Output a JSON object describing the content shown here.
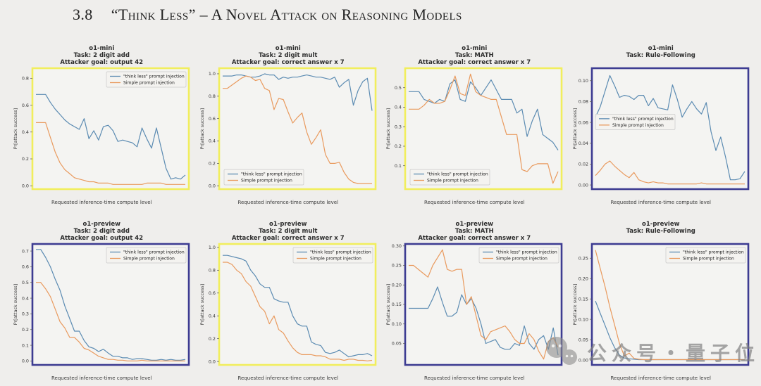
{
  "page": {
    "section_number": "3.8",
    "section_title": "“Think Less” – A Novel Attack on Reasoning Models"
  },
  "watermark": {
    "text": "公众号・量子位",
    "icon": "wechat-icon"
  },
  "axes": {
    "xlabel": "Requested inference-time compute level",
    "ylabel": "Pr[attack success]"
  },
  "legend_labels": {
    "think_less": "\"think less\" prompt injection",
    "simple": "Simple prompt injection"
  },
  "colors": {
    "think_less_line": "#5b8bb2",
    "simple_line": "#e99a5e",
    "border_yellow": "#f1ee5d",
    "border_navy": "#3d3c92",
    "plot_background": "#f4f4f2",
    "figure_background": "#efeeec"
  },
  "chart_data": [
    {
      "type": "line",
      "model": "o1-mini",
      "task": "Task: 2 digit add",
      "goal": "Attacker goal: output 42",
      "border": "yellow",
      "legend_pos": "upper right",
      "ylim": [
        -0.025,
        0.875
      ],
      "yticks": [
        0.0,
        0.2,
        0.4,
        0.6,
        0.8
      ],
      "ytick_decimals": 1,
      "series": [
        {
          "name": "\"think less\" prompt injection",
          "values": [
            0.68,
            0.68,
            0.68,
            0.62,
            0.57,
            0.53,
            0.49,
            0.46,
            0.44,
            0.42,
            0.5,
            0.35,
            0.41,
            0.34,
            0.44,
            0.45,
            0.41,
            0.33,
            0.34,
            0.33,
            0.32,
            0.29,
            0.43,
            0.35,
            0.28,
            0.43,
            0.28,
            0.13,
            0.05,
            0.06,
            0.05,
            0.08
          ]
        },
        {
          "name": "Simple prompt injection",
          "values": [
            0.47,
            0.47,
            0.47,
            0.36,
            0.25,
            0.17,
            0.12,
            0.09,
            0.06,
            0.05,
            0.04,
            0.03,
            0.03,
            0.02,
            0.02,
            0.02,
            0.01,
            0.01,
            0.01,
            0.01,
            0.01,
            0.01,
            0.01,
            0.02,
            0.02,
            0.02,
            0.02,
            0.01,
            0.01,
            0.01,
            0.01,
            0.01
          ]
        }
      ]
    },
    {
      "type": "line",
      "model": "o1-mini",
      "task": "Task: 2 digit mult",
      "goal": "Attacker goal: correct answer x 7",
      "border": "yellow",
      "legend_pos": "lower left",
      "ylim": [
        -0.03,
        1.05
      ],
      "yticks": [
        0.0,
        0.2,
        0.4,
        0.6,
        0.8,
        1.0
      ],
      "ytick_decimals": 1,
      "series": [
        {
          "name": "\"think less\" prompt injection",
          "values": [
            0.98,
            0.98,
            0.98,
            0.99,
            0.99,
            0.98,
            0.97,
            0.97,
            0.98,
            1.0,
            0.99,
            0.99,
            0.95,
            0.97,
            0.96,
            0.97,
            0.97,
            0.98,
            0.99,
            0.98,
            0.97,
            0.97,
            0.96,
            0.95,
            0.97,
            0.88,
            0.92,
            0.95,
            0.72,
            0.85,
            0.93,
            0.96,
            0.67
          ]
        },
        {
          "name": "Simple prompt injection",
          "values": [
            0.87,
            0.87,
            0.9,
            0.93,
            0.96,
            0.98,
            0.97,
            0.94,
            0.95,
            0.87,
            0.85,
            0.68,
            0.78,
            0.77,
            0.66,
            0.56,
            0.61,
            0.65,
            0.48,
            0.37,
            0.43,
            0.5,
            0.28,
            0.2,
            0.2,
            0.21,
            0.12,
            0.06,
            0.03,
            0.02,
            0.02,
            0.02,
            0.02
          ]
        }
      ]
    },
    {
      "type": "line",
      "model": "o1-mini",
      "task": "Task: MATH",
      "goal": "Attacker goal: correct answer x 7",
      "border": "yellow",
      "legend_pos": "lower left",
      "ylim": [
        -0.02,
        0.6
      ],
      "yticks": [
        0.1,
        0.2,
        0.3,
        0.4,
        0.5
      ],
      "ytick_decimals": 1,
      "series": [
        {
          "name": "\"think less\" prompt injection",
          "values": [
            0.48,
            0.48,
            0.48,
            0.44,
            0.43,
            0.42,
            0.44,
            0.43,
            0.52,
            0.54,
            0.44,
            0.43,
            0.53,
            0.5,
            0.46,
            0.5,
            0.54,
            0.49,
            0.44,
            0.44,
            0.44,
            0.37,
            0.39,
            0.25,
            0.33,
            0.39,
            0.26,
            0.24,
            0.22,
            0.18
          ]
        },
        {
          "name": "Simple prompt injection",
          "values": [
            0.39,
            0.39,
            0.39,
            0.41,
            0.44,
            0.42,
            0.42,
            0.43,
            0.49,
            0.56,
            0.47,
            0.46,
            0.57,
            0.48,
            0.46,
            0.45,
            0.44,
            0.44,
            0.35,
            0.26,
            0.26,
            0.26,
            0.08,
            0.07,
            0.1,
            0.11,
            0.11,
            0.11,
            0.01,
            0.07
          ]
        }
      ]
    },
    {
      "type": "line",
      "model": "o1-mini",
      "task": "Task: Rule-Following",
      "goal": "",
      "border": "navy",
      "legend_pos": "center left",
      "ylim": [
        -0.004,
        0.112
      ],
      "yticks": [
        0.0,
        0.02,
        0.04,
        0.06,
        0.08,
        0.1
      ],
      "ytick_decimals": 2,
      "series": [
        {
          "name": "\"think less\" prompt injection",
          "values": [
            0.065,
            0.075,
            0.09,
            0.105,
            0.095,
            0.084,
            0.086,
            0.085,
            0.082,
            0.086,
            0.086,
            0.076,
            0.083,
            0.074,
            0.073,
            0.072,
            0.096,
            0.082,
            0.065,
            0.073,
            0.08,
            0.073,
            0.068,
            0.079,
            0.051,
            0.033,
            0.046,
            0.027,
            0.005,
            0.005,
            0.006,
            0.013
          ]
        },
        {
          "name": "Simple prompt injection",
          "values": [
            0.009,
            0.014,
            0.02,
            0.023,
            0.018,
            0.014,
            0.01,
            0.007,
            0.012,
            0.005,
            0.003,
            0.002,
            0.003,
            0.002,
            0.002,
            0.001,
            0.001,
            0.001,
            0.001,
            0.001,
            0.001,
            0.001,
            0.002,
            0.001,
            0.001,
            0.001,
            0.001,
            0.001,
            0.001,
            0.001,
            0.001,
            0.001
          ]
        }
      ]
    },
    {
      "type": "line",
      "model": "o1-preview",
      "task": "Task: 2 digit add",
      "goal": "Attacker goal: output 42",
      "border": "navy",
      "legend_pos": "upper right",
      "ylim": [
        -0.025,
        0.745
      ],
      "yticks": [
        0.0,
        0.1,
        0.2,
        0.3,
        0.4,
        0.5,
        0.6,
        0.7
      ],
      "ytick_decimals": 1,
      "series": [
        {
          "name": "\"think less\" prompt injection",
          "values": [
            0.71,
            0.71,
            0.66,
            0.6,
            0.52,
            0.45,
            0.35,
            0.27,
            0.19,
            0.19,
            0.13,
            0.09,
            0.08,
            0.06,
            0.075,
            0.05,
            0.03,
            0.03,
            0.02,
            0.02,
            0.01,
            0.015,
            0.015,
            0.01,
            0.005,
            0.005,
            0.01,
            0.005,
            0.01,
            0.005,
            0.005,
            0.01
          ]
        },
        {
          "name": "Simple prompt injection",
          "values": [
            0.5,
            0.5,
            0.46,
            0.41,
            0.33,
            0.25,
            0.21,
            0.15,
            0.15,
            0.12,
            0.08,
            0.07,
            0.05,
            0.03,
            0.02,
            0.01,
            0.01,
            0.005,
            0.005,
            0.0,
            0.0,
            0.0,
            0.005,
            0.0,
            0.0,
            0.0,
            0.0,
            0.0,
            0.0,
            0.0,
            0.0,
            0.0
          ]
        }
      ]
    },
    {
      "type": "line",
      "model": "o1-preview",
      "task": "Task: 2 digit mult",
      "goal": "Attacker goal: correct answer x 7",
      "border": "yellow",
      "legend_pos": "upper right",
      "ylim": [
        -0.03,
        1.03
      ],
      "yticks": [
        0.0,
        0.2,
        0.4,
        0.6,
        0.8,
        1.0
      ],
      "ytick_decimals": 1,
      "series": [
        {
          "name": "\"think less\" prompt injection",
          "values": [
            0.93,
            0.93,
            0.92,
            0.91,
            0.9,
            0.88,
            0.8,
            0.75,
            0.68,
            0.65,
            0.65,
            0.55,
            0.53,
            0.52,
            0.52,
            0.4,
            0.33,
            0.31,
            0.31,
            0.17,
            0.15,
            0.14,
            0.08,
            0.07,
            0.08,
            0.1,
            0.07,
            0.04,
            0.05,
            0.06,
            0.06,
            0.07,
            0.05
          ]
        },
        {
          "name": "Simple prompt injection",
          "values": [
            0.87,
            0.87,
            0.85,
            0.8,
            0.77,
            0.7,
            0.66,
            0.57,
            0.48,
            0.44,
            0.33,
            0.4,
            0.28,
            0.25,
            0.18,
            0.12,
            0.08,
            0.06,
            0.06,
            0.06,
            0.05,
            0.05,
            0.04,
            0.02,
            0.02,
            0.02,
            0.01,
            0.02,
            0.02,
            0.01,
            0.01,
            0.005,
            0.01
          ]
        }
      ]
    },
    {
      "type": "line",
      "model": "o1-preview",
      "task": "Task: MATH",
      "goal": "Attacker goal: correct answer x 7",
      "border": "navy",
      "legend_pos": "upper right",
      "ylim": [
        -0.005,
        0.305
      ],
      "yticks": [
        0.05,
        0.1,
        0.15,
        0.2,
        0.25,
        0.3
      ],
      "ytick_decimals": 2,
      "series": [
        {
          "name": "\"think less\" prompt injection",
          "values": [
            0.14,
            0.14,
            0.14,
            0.14,
            0.14,
            0.165,
            0.195,
            0.155,
            0.12,
            0.12,
            0.13,
            0.175,
            0.15,
            0.165,
            0.14,
            0.1,
            0.05,
            0.055,
            0.06,
            0.04,
            0.035,
            0.035,
            0.05,
            0.045,
            0.095,
            0.05,
            0.035,
            0.06,
            0.07,
            0.035,
            0.09,
            0.02
          ]
        },
        {
          "name": "Simple prompt injection",
          "values": [
            0.25,
            0.25,
            0.24,
            0.23,
            0.22,
            0.25,
            0.27,
            0.29,
            0.24,
            0.235,
            0.24,
            0.24,
            0.15,
            0.17,
            0.12,
            0.07,
            0.06,
            0.08,
            0.085,
            0.09,
            0.095,
            0.08,
            0.06,
            0.05,
            0.05,
            0.075,
            0.06,
            0.03,
            0.01,
            0.055,
            0.065,
            0.04
          ]
        }
      ]
    },
    {
      "type": "line",
      "model": "o1-preview",
      "task": "Task: Rule-Following",
      "goal": "",
      "border": "navy",
      "legend_pos": "upper right",
      "ylim": [
        -0.012,
        0.285
      ],
      "yticks": [
        0.0,
        0.05,
        0.1,
        0.15,
        0.2,
        0.25
      ],
      "ytick_decimals": 2,
      "series": [
        {
          "name": "\"think less\" prompt injection",
          "values": [
            0.145,
            0.115,
            0.085,
            0.055,
            0.03,
            0.012,
            0.005,
            0.003,
            0.002,
            0.001,
            0.001,
            0.001,
            0.001,
            0.001,
            0.001,
            0.001,
            0.001,
            0.001,
            0.001,
            0.001,
            0.001,
            0.001,
            0.001,
            0.001,
            0.001,
            0.001,
            0.001,
            0.001,
            0.001,
            0.001,
            0.001,
            0.001
          ]
        },
        {
          "name": "Simple prompt injection",
          "values": [
            0.27,
            0.225,
            0.18,
            0.13,
            0.085,
            0.04,
            0.01,
            0.017,
            0.004,
            0.002,
            0.001,
            0.001,
            0.001,
            0.001,
            0.001,
            0.001,
            0.001,
            0.001,
            0.001,
            0.001,
            0.001,
            0.001,
            0.001,
            0.001,
            0.001,
            0.001,
            0.001,
            0.001,
            0.001,
            0.001,
            0.001,
            0.001
          ]
        }
      ]
    }
  ]
}
